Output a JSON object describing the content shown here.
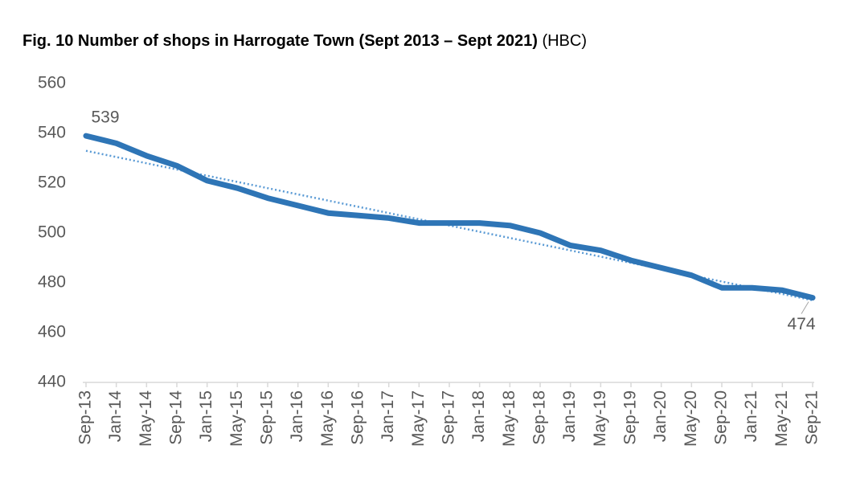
{
  "chart_data": {
    "type": "line",
    "title": "Fig. 10 Number of shops in Harrogate Town (Sept 2013 – Sept 2021)",
    "source": "(HBC)",
    "categories": [
      "Sep-13",
      "Jan-14",
      "May-14",
      "Sep-14",
      "Jan-15",
      "May-15",
      "Sep-15",
      "Jan-16",
      "May-16",
      "Sep-16",
      "Jan-17",
      "May-17",
      "Sep-17",
      "Jan-18",
      "May-18",
      "Sep-18",
      "Jan-19",
      "May-19",
      "Sep-19",
      "Jan-20",
      "May-20",
      "Sep-20",
      "Jan-21",
      "May-21",
      "Sep-21"
    ],
    "values": [
      539,
      536,
      531,
      527,
      521,
      518,
      514,
      511,
      508,
      507,
      506,
      504,
      504,
      504,
      503,
      500,
      495,
      493,
      489,
      486,
      483,
      478,
      478,
      477,
      474
    ],
    "color": "#2e75b6",
    "labeled_points": [
      0,
      24
    ],
    "trendline": {
      "values": [
        533,
        473
      ],
      "color": "#5b9bd5"
    },
    "ylim": [
      440,
      560
    ],
    "yticks": [
      440,
      460,
      480,
      500,
      520,
      540,
      560
    ],
    "grid": false
  }
}
